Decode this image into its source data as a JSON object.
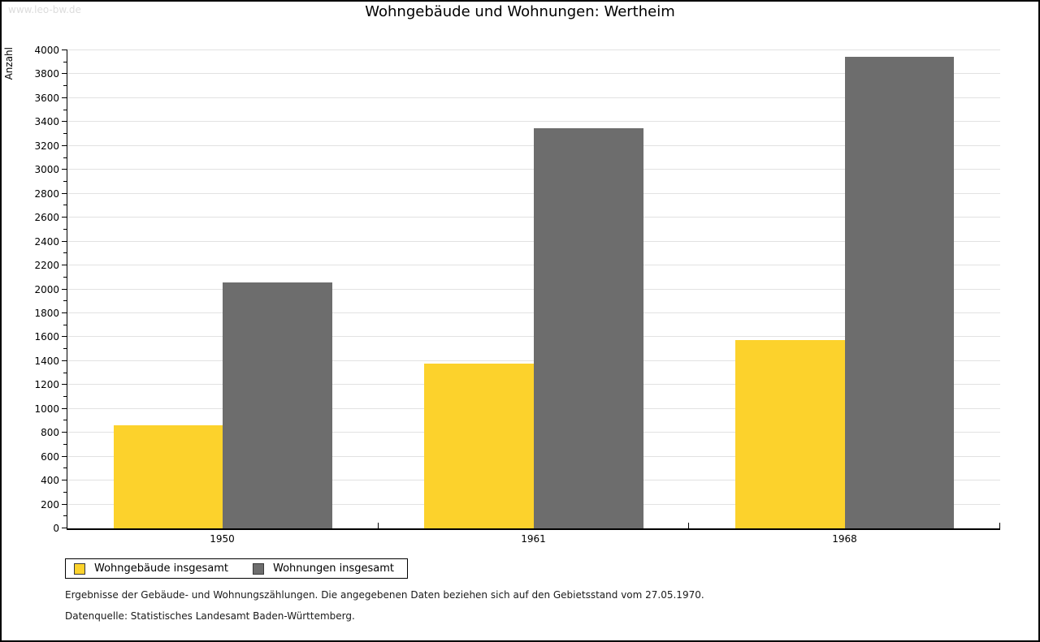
{
  "watermark": "www.leo-bw.de",
  "chart_data": {
    "type": "bar",
    "title": "Wohngebäude und Wohnungen: Wertheim",
    "ylabel": "Anzahl",
    "xlabel": "",
    "categories": [
      "1950",
      "1961",
      "1968"
    ],
    "series": [
      {
        "name": "Wohngebäude insgesamt",
        "color": "#FCD22C",
        "values": [
          860,
          1380,
          1575
        ]
      },
      {
        "name": "Wohnungen insgesamt",
        "color": "#6D6D6D",
        "values": [
          2060,
          3350,
          3945
        ]
      }
    ],
    "ylim": [
      0,
      4000
    ],
    "y_major_step": 200,
    "y_minor_step": 100,
    "grid": "horizontal-major",
    "gridline_color": "#E2E2E2",
    "legend_position": "bottom-left"
  },
  "footer": {
    "line1": "Ergebnisse der Gebäude- und Wohnungszählungen. Die angegebenen Daten beziehen sich auf den Gebietsstand vom 27.05.1970.",
    "line2": "Datenquelle: Statistisches Landesamt Baden-Württemberg."
  }
}
